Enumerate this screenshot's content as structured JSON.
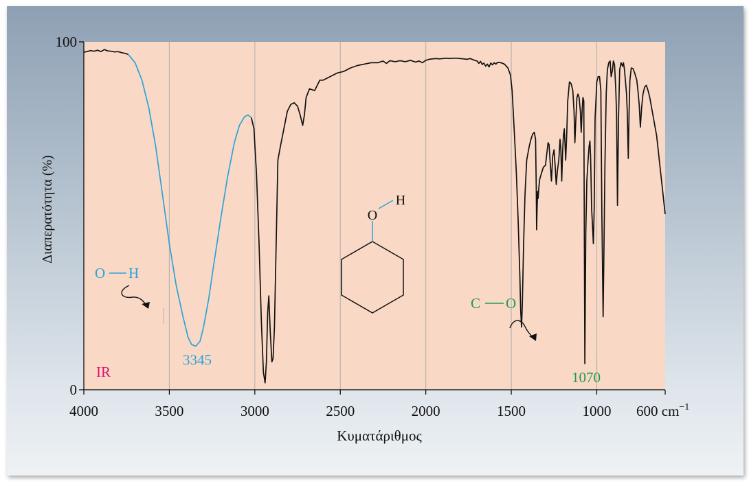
{
  "chart_data": {
    "type": "line",
    "xlabel": "Κυματάριθμος",
    "ylabel": "Διαπερατότητα (%)",
    "corner_label": "IR",
    "xlim": [
      4000,
      600
    ],
    "ylim": [
      0,
      100
    ],
    "x_ticks": [
      {
        "value": 4000,
        "label": "4000"
      },
      {
        "value": 3500,
        "label": "3500"
      },
      {
        "value": 3000,
        "label": "3000"
      },
      {
        "value": 2500,
        "label": "2500"
      },
      {
        "value": 2000,
        "label": "2000"
      },
      {
        "value": 1500,
        "label": "1500"
      },
      {
        "value": 1000,
        "label": "1000"
      },
      {
        "value": 600,
        "label": "600 cm",
        "superscript": "−1"
      }
    ],
    "y_ticks": [
      {
        "value": 100,
        "label": "100"
      },
      {
        "value": 0,
        "label": "0"
      }
    ],
    "gridlines_x": [
      3500,
      3000,
      2500,
      2000,
      1500,
      1000
    ],
    "colors": {
      "background": "#f9d9c6",
      "spectrum": "#111111",
      "oh": "#2aa3d8",
      "co": "#1f9a55",
      "ir": "#d6166e",
      "grid": "#b9b3b0"
    },
    "series": [
      {
        "name": "",
        "color": "#111111",
        "points": [
          [
            4000,
            97
          ],
          [
            3960,
            97.5
          ],
          [
            3940,
            97.3
          ],
          [
            3920,
            97.6
          ],
          [
            3900,
            97.2
          ],
          [
            3880,
            97.8
          ],
          [
            3860,
            97.4
          ],
          [
            3840,
            97.3
          ],
          [
            3820,
            97.1
          ],
          [
            3800,
            97.2
          ],
          [
            3780,
            96.9
          ],
          [
            3760,
            96.7
          ],
          [
            3740,
            96.4
          ]
        ]
      },
      {
        "name": "",
        "color": "#2aa3d8",
        "points": [
          [
            3740,
            96.4
          ],
          [
            3700,
            94
          ],
          [
            3660,
            89
          ],
          [
            3620,
            81
          ],
          [
            3580,
            70
          ],
          [
            3540,
            56
          ],
          [
            3500,
            42
          ],
          [
            3460,
            30
          ],
          [
            3420,
            21
          ],
          [
            3390,
            15
          ],
          [
            3370,
            13
          ],
          [
            3345,
            12.5
          ],
          [
            3320,
            14
          ],
          [
            3300,
            18
          ],
          [
            3270,
            26
          ],
          [
            3240,
            36
          ],
          [
            3200,
            49
          ],
          [
            3160,
            61
          ],
          [
            3120,
            71
          ],
          [
            3090,
            76
          ],
          [
            3060,
            78.5
          ],
          [
            3040,
            79
          ],
          [
            3020,
            78.2
          ]
        ]
      },
      {
        "name": "",
        "color": "#111111",
        "points": [
          [
            3020,
            78.2
          ],
          [
            3005,
            75
          ],
          [
            2990,
            62
          ],
          [
            2975,
            42
          ],
          [
            2962,
            20
          ],
          [
            2950,
            5
          ],
          [
            2940,
            2
          ],
          [
            2932,
            8
          ],
          [
            2925,
            22
          ],
          [
            2918,
            27
          ],
          [
            2910,
            17
          ],
          [
            2900,
            8
          ],
          [
            2893,
            9
          ],
          [
            2885,
            18
          ],
          [
            2875,
            42
          ],
          [
            2865,
            66
          ],
          [
            2850,
            70
          ],
          [
            2830,
            75
          ],
          [
            2810,
            80
          ],
          [
            2790,
            82
          ],
          [
            2770,
            82.5
          ],
          [
            2750,
            81.5
          ],
          [
            2735,
            79
          ],
          [
            2720,
            76
          ],
          [
            2710,
            79
          ],
          [
            2700,
            84
          ],
          [
            2680,
            86.5
          ],
          [
            2650,
            86
          ],
          [
            2620,
            89
          ],
          [
            2600,
            89
          ],
          [
            2560,
            90
          ],
          [
            2520,
            91
          ],
          [
            2480,
            91.5
          ],
          [
            2440,
            92.5
          ],
          [
            2400,
            93.2
          ],
          [
            2360,
            93.6
          ],
          [
            2320,
            94
          ],
          [
            2280,
            94
          ],
          [
            2250,
            94.5
          ],
          [
            2230,
            93.8
          ],
          [
            2210,
            94.6
          ],
          [
            2180,
            94.3
          ],
          [
            2150,
            94.6
          ],
          [
            2120,
            94.3
          ],
          [
            2090,
            94.7
          ],
          [
            2060,
            94.2
          ],
          [
            2040,
            94.5
          ],
          [
            2020,
            94
          ],
          [
            2000,
            94.7
          ],
          [
            1980,
            95
          ],
          [
            1960,
            95.1
          ],
          [
            1940,
            95.2
          ],
          [
            1920,
            95.1
          ],
          [
            1900,
            95.2
          ],
          [
            1880,
            95.3
          ],
          [
            1860,
            95.2
          ],
          [
            1840,
            95.3
          ],
          [
            1820,
            95.3
          ],
          [
            1800,
            95.2
          ],
          [
            1780,
            95.1
          ],
          [
            1760,
            95
          ],
          [
            1740,
            95.2
          ],
          [
            1720,
            94.8
          ],
          [
            1700,
            94.5
          ],
          [
            1690,
            93.8
          ],
          [
            1680,
            94.4
          ],
          [
            1670,
            93.5
          ],
          [
            1660,
            93.9
          ],
          [
            1650,
            93
          ],
          [
            1640,
            93.6
          ],
          [
            1630,
            92.8
          ],
          [
            1620,
            93.9
          ],
          [
            1610,
            93.4
          ],
          [
            1600,
            94
          ],
          [
            1590,
            93.6
          ],
          [
            1580,
            94.1
          ],
          [
            1560,
            94
          ],
          [
            1540,
            93.6
          ],
          [
            1520,
            92.5
          ],
          [
            1505,
            90.5
          ],
          [
            1495,
            86
          ],
          [
            1480,
            72
          ],
          [
            1470,
            62
          ],
          [
            1460,
            49
          ],
          [
            1450,
            33
          ],
          [
            1445,
            23
          ],
          [
            1440,
            18
          ],
          [
            1435,
            25
          ],
          [
            1428,
            42
          ],
          [
            1420,
            56
          ],
          [
            1410,
            66
          ],
          [
            1395,
            70
          ],
          [
            1385,
            72
          ],
          [
            1375,
            73.5
          ],
          [
            1365,
            74
          ],
          [
            1358,
            72
          ],
          [
            1354,
            58
          ],
          [
            1352,
            46
          ],
          [
            1349,
            52
          ],
          [
            1346,
            57
          ],
          [
            1343,
            55
          ],
          [
            1339,
            58
          ],
          [
            1334,
            60.5
          ],
          [
            1325,
            62
          ],
          [
            1312,
            64
          ],
          [
            1300,
            64.5
          ],
          [
            1292,
            68
          ],
          [
            1285,
            71
          ],
          [
            1279,
            70.5
          ],
          [
            1272,
            65
          ],
          [
            1265,
            60
          ],
          [
            1258,
            67
          ],
          [
            1250,
            69
          ],
          [
            1243,
            64
          ],
          [
            1237,
            59
          ],
          [
            1230,
            63
          ],
          [
            1222,
            66
          ],
          [
            1215,
            72
          ],
          [
            1210,
            69
          ],
          [
            1205,
            60
          ],
          [
            1200,
            68
          ],
          [
            1195,
            73
          ],
          [
            1190,
            75
          ],
          [
            1185,
            70
          ],
          [
            1182,
            66
          ],
          [
            1176,
            73
          ],
          [
            1170,
            83
          ],
          [
            1160,
            88.5
          ],
          [
            1150,
            88
          ],
          [
            1140,
            86
          ],
          [
            1133,
            80
          ],
          [
            1128,
            71
          ],
          [
            1122,
            78
          ],
          [
            1116,
            84
          ],
          [
            1110,
            85
          ],
          [
            1103,
            84
          ],
          [
            1096,
            80
          ],
          [
            1091,
            74
          ],
          [
            1086,
            80
          ],
          [
            1081,
            84
          ],
          [
            1076,
            83
          ],
          [
            1070,
            7.5
          ],
          [
            1064,
            45
          ],
          [
            1058,
            60
          ],
          [
            1052,
            65
          ],
          [
            1045,
            70
          ],
          [
            1040,
            71.5
          ],
          [
            1036,
            67
          ],
          [
            1030,
            52
          ],
          [
            1025,
            47
          ],
          [
            1020,
            42
          ],
          [
            1015,
            52
          ],
          [
            1010,
            78
          ],
          [
            1000,
            88.5
          ],
          [
            992,
            90
          ],
          [
            984,
            90
          ],
          [
            976,
            86
          ],
          [
            970,
            50
          ],
          [
            963,
            21
          ],
          [
            958,
            40
          ],
          [
            952,
            65
          ],
          [
            945,
            85
          ],
          [
            938,
            92
          ],
          [
            930,
            94
          ],
          [
            922,
            94.5
          ],
          [
            916,
            90
          ],
          [
            908,
            92
          ],
          [
            903,
            94.5
          ],
          [
            896,
            93.5
          ],
          [
            889,
            86.5
          ],
          [
            884,
            79
          ],
          [
            879,
            53
          ],
          [
            873,
            78
          ],
          [
            866,
            92
          ],
          [
            858,
            94
          ],
          [
            850,
            93
          ],
          [
            844,
            94
          ],
          [
            838,
            92
          ],
          [
            832,
            88.5
          ],
          [
            826,
            85
          ],
          [
            822,
            80
          ],
          [
            816,
            66.5
          ],
          [
            811,
            80
          ],
          [
            806,
            89
          ],
          [
            798,
            92.5
          ],
          [
            788,
            92.3
          ],
          [
            778,
            91
          ],
          [
            766,
            89
          ],
          [
            759,
            86
          ],
          [
            752,
            82
          ],
          [
            745,
            75.5
          ],
          [
            738,
            81
          ],
          [
            730,
            85
          ],
          [
            720,
            87
          ],
          [
            710,
            87.5
          ],
          [
            700,
            86
          ],
          [
            690,
            84
          ],
          [
            650,
            73
          ],
          [
            600,
            50.5
          ]
        ]
      }
    ],
    "annotations": [
      {
        "text": "3345",
        "x": 3345,
        "y": 12.5,
        "color": "#2aa3d8"
      },
      {
        "text": "1070",
        "x": 1070,
        "y": 7.5,
        "color": "#1f9a55"
      }
    ],
    "bond_labels": [
      {
        "atoms": [
          "O",
          "H"
        ],
        "color": "#2aa3d8"
      },
      {
        "atoms": [
          "C",
          "O"
        ],
        "color": "#1f9a55"
      }
    ]
  },
  "structure": {
    "oxygen": "O",
    "hydrogen": "H"
  }
}
